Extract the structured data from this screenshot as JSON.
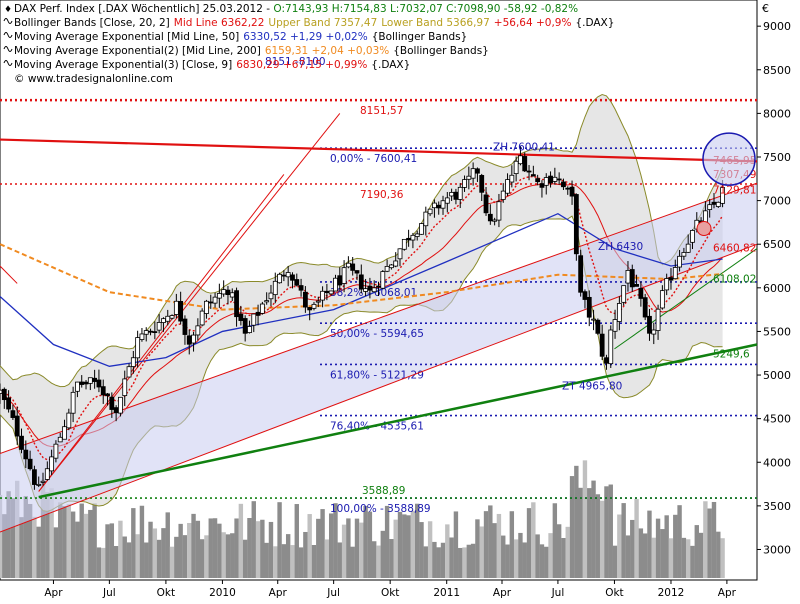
{
  "header": {
    "line1": {
      "prefix": "DAX Perf. Index [.DAX  Wöchentlich] 25.03.2012 - ",
      "ohlc": "O:7143,93 H:7154,83 L:7032,07 C:7098,90 -58,92 -0,82%"
    },
    "line2": {
      "label": "Bollinger Bands [Close, 20, 2]",
      "mid": "Mid Line 6362,22",
      "upper": "Upper Band 7357,47",
      "lower": "Lower Band 5366,97",
      "change": "+56,64 +0,9%",
      "ticker": "{.DAX}"
    },
    "line3": {
      "label": "Moving Average Exponential [Mid Line, 50]",
      "value": "6330,52 +1,29 +0,02%",
      "ref": "{Bollinger Bands}"
    },
    "line4": {
      "label": "Moving Average Exponential(2) [Mid Line, 200]",
      "value": "6159,31 +2,04 +0,03%",
      "ref": "{Bollinger Bands}"
    },
    "line5": {
      "label": "Moving Average Exponential(3) [Close, 9]",
      "value": "6830,29 +67,15 +0,99%",
      "ref": "{.DAX}"
    },
    "source": "© www.tradesignalonline.com"
  },
  "currency": "€",
  "colors": {
    "price": "#000000",
    "bb_fill": "#d8d8d8",
    "bb_line": "#8a8a2a",
    "ema50": "#2030c0",
    "ema200": "#f08a20",
    "ema9": "#e01010",
    "trend_red": "#e01010",
    "trend_green": "#108010",
    "channel_fill": "#c8ccf0",
    "fib": "#1a1ab0",
    "level_red": "#e01010",
    "volume": "#8a8a8a"
  },
  "chart_data": {
    "type": "candlestick",
    "title": "DAX Perf. Index [.DAX Wöchentlich]",
    "ylim": [
      2650,
      9300
    ],
    "y_ticks": [
      3000,
      3500,
      4000,
      4500,
      5000,
      5500,
      6000,
      6500,
      7000,
      7500,
      8000,
      8500,
      9000
    ],
    "y_tick_labels": [
      "3000",
      "3500",
      "4000",
      "4500",
      "5000",
      "5500",
      "6000",
      "6500",
      "7000",
      "7500",
      "8000",
      "8500",
      "9000"
    ],
    "x_ticks": [
      "Apr",
      "Jul",
      "Okt",
      "2010",
      "Apr",
      "Jul",
      "Okt",
      "2011",
      "Apr",
      "Jul",
      "Okt",
      "2012",
      "Apr"
    ],
    "x_start": "2009-01-04",
    "x_end": "2012-05-20",
    "x_tick_dates": [
      "2009-04-01",
      "2009-07-01",
      "2009-10-01",
      "2010-01-01",
      "2010-04-01",
      "2010-07-01",
      "2010-10-01",
      "2011-01-01",
      "2011-04-01",
      "2011-07-01",
      "2011-10-01",
      "2012-01-01",
      "2012-04-01"
    ],
    "price_anchors": [
      [
        "2009-01-04",
        4800
      ],
      [
        "2009-02-01",
        4350
      ],
      [
        "2009-03-08",
        3666
      ],
      [
        "2009-04-12",
        4300
      ],
      [
        "2009-05-10",
        4900
      ],
      [
        "2009-06-14",
        4900
      ],
      [
        "2009-07-12",
        4600
      ],
      [
        "2009-08-16",
        5400
      ],
      [
        "2009-09-20",
        5600
      ],
      [
        "2009-10-18",
        5800
      ],
      [
        "2009-11-08",
        5400
      ],
      [
        "2009-12-06",
        5800
      ],
      [
        "2010-01-10",
        6000
      ],
      [
        "2010-02-07",
        5450
      ],
      [
        "2010-03-14",
        5900
      ],
      [
        "2010-04-18",
        6250
      ],
      [
        "2010-05-23",
        5700
      ],
      [
        "2010-06-27",
        6000
      ],
      [
        "2010-07-25",
        6200
      ],
      [
        "2010-08-29",
        5950
      ],
      [
        "2010-10-03",
        6300
      ],
      [
        "2010-10-31",
        6600
      ],
      [
        "2010-11-28",
        6800
      ],
      [
        "2010-12-26",
        7000
      ],
      [
        "2011-01-23",
        7100
      ],
      [
        "2011-02-20",
        7350
      ],
      [
        "2011-03-13",
        6700
      ],
      [
        "2011-04-10",
        7200
      ],
      [
        "2011-05-01",
        7500
      ],
      [
        "2011-05-29",
        7200
      ],
      [
        "2011-06-26",
        7300
      ],
      [
        "2011-07-24",
        7000
      ],
      [
        "2011-08-07",
        5900
      ],
      [
        "2011-08-28",
        5600
      ],
      [
        "2011-09-18",
        5100
      ],
      [
        "2011-09-25",
        5500
      ],
      [
        "2011-10-23",
        6200
      ],
      [
        "2011-11-13",
        5800
      ],
      [
        "2011-11-27",
        5400
      ],
      [
        "2011-12-18",
        5900
      ],
      [
        "2012-01-15",
        6400
      ],
      [
        "2012-02-12",
        6700
      ],
      [
        "2012-03-11",
        6950
      ],
      [
        "2012-03-25",
        7100
      ]
    ],
    "volume_note": "weekly volume bars (relative)",
    "bollinger": {
      "period": 20,
      "mult": 2,
      "mid": 6362.22,
      "upper": 7357.47,
      "lower": 5366.97
    },
    "ema_anchors": {
      "ema50": [
        [
          "2009-01-04",
          5900
        ],
        [
          "2009-04-01",
          5350
        ],
        [
          "2009-07-01",
          5100
        ],
        [
          "2009-10-01",
          5200
        ],
        [
          "2010-01-01",
          5500
        ],
        [
          "2010-07-01",
          5750
        ],
        [
          "2011-01-01",
          6300
        ],
        [
          "2011-07-01",
          6850
        ],
        [
          "2011-10-01",
          6450
        ],
        [
          "2012-01-01",
          6250
        ],
        [
          "2012-03-25",
          6330
        ]
      ],
      "ema200": [
        [
          "2009-01-04",
          6500
        ],
        [
          "2009-07-01",
          5950
        ],
        [
          "2010-01-01",
          5750
        ],
        [
          "2010-07-01",
          5800
        ],
        [
          "2011-01-01",
          5950
        ],
        [
          "2011-07-01",
          6150
        ],
        [
          "2012-01-01",
          6100
        ],
        [
          "2012-03-25",
          6160
        ]
      ]
    },
    "trendlines": [
      {
        "color": "red",
        "from": [
          "2009-01-04",
          7700
        ],
        "to": [
          "2012-05-20",
          7450
        ]
      },
      {
        "color": "red",
        "from": [
          "2009-01-04",
          4100
        ],
        "to": [
          "2012-05-20",
          7200
        ]
      },
      {
        "color": "red",
        "from": [
          "2009-01-04",
          3200
        ],
        "to": [
          "2012-05-20",
          6500
        ]
      },
      {
        "color": "red",
        "from": [
          "2009-03-08",
          3666
        ],
        "to": [
          "2010-04-11",
          7300
        ]
      },
      {
        "color": "red",
        "from": [
          "2009-03-08",
          3666
        ],
        "to": [
          "2010-07-11",
          8000
        ]
      },
      {
        "color": "red",
        "from": [
          "2009-01-04",
          6250
        ],
        "to": [
          "2009-02-01",
          6050
        ]
      },
      {
        "color": "green",
        "from": [
          "2009-03-08",
          3600
        ],
        "to": [
          "2012-05-20",
          5350
        ]
      },
      {
        "color": "green",
        "from": [
          "2011-10-01",
          5300
        ],
        "to": [
          "2012-05-20",
          6450
        ]
      }
    ],
    "levels": [
      {
        "value": 8151.57,
        "label": "8151,57",
        "color": "red",
        "style": "dotted"
      },
      {
        "value": 7600.41,
        "label": "0,00% - 7600,41",
        "color": "blue",
        "style": "dotted"
      },
      {
        "value": 7190.36,
        "label": "7190,36",
        "color": "red",
        "style": "dotted"
      },
      {
        "value": 6068.01,
        "label": "38,2% - 6068,01",
        "color": "blue",
        "style": "dotted"
      },
      {
        "value": 5594.65,
        "label": "50,00% - 5594,65",
        "color": "blue",
        "style": "dotted"
      },
      {
        "value": 5121.29,
        "label": "61,80% - 5121,29",
        "color": "blue",
        "style": "dotted"
      },
      {
        "value": 4535.61,
        "label": "76,40% - 4535,61",
        "color": "blue",
        "style": "dotted"
      },
      {
        "value": 3588.89,
        "label": "100,00% - 3588,89",
        "color": "blue",
        "style": "dotted"
      },
      {
        "value": 3588.89,
        "label": "3588,89",
        "color": "green",
        "style": "dotted"
      }
    ],
    "annotations": [
      {
        "text": "8151 -8100",
        "value": 8600
      },
      {
        "text": "ZH 7600,41",
        "value": 7620
      },
      {
        "text": "ZH 6430",
        "value": 6480
      },
      {
        "text": "ZT 4965,80",
        "value": 4880
      },
      {
        "text": "7465,95",
        "value": 7465.95
      },
      {
        "text": "7307,49",
        "value": 7307.49
      },
      {
        "text": "7129,81",
        "value": 7129.81
      },
      {
        "text": "6460,82",
        "value": 6460.82
      },
      {
        "text": "6108,02",
        "value": 6108.02
      },
      {
        "text": "5249,6",
        "value": 5249.6
      }
    ]
  }
}
